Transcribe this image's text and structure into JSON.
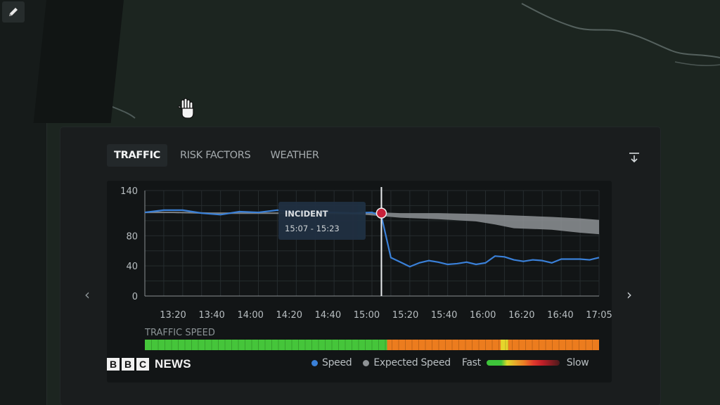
{
  "tabs": [
    {
      "label": "TRAFFIC",
      "active": true
    },
    {
      "label": "RISK FACTORS",
      "active": false
    },
    {
      "label": "WEATHER",
      "active": false
    }
  ],
  "icons": {
    "pen": "pencil-icon",
    "cursor": "hand-cursor-icon",
    "download": "download-icon",
    "prev": "chevron-left-icon",
    "next": "chevron-right-icon"
  },
  "chart_data": {
    "type": "line",
    "ylim": [
      0,
      140
    ],
    "yticks": [
      0,
      40,
      80,
      140
    ],
    "xticks": [
      "13:20",
      "13:40",
      "14:00",
      "14:20",
      "14:40",
      "15:00",
      "15:20",
      "15:40",
      "16:00",
      "16:20",
      "16:40",
      "17:05"
    ],
    "incident": {
      "label": "INCIDENT",
      "range": "15:07 - 15:23",
      "time": "15:10",
      "value": 110
    },
    "series": [
      {
        "name": "Speed",
        "color": "#3a80d8",
        "points": [
          [
            "13:05",
            111
          ],
          [
            "13:15",
            114
          ],
          [
            "13:25",
            114
          ],
          [
            "13:35",
            110
          ],
          [
            "13:45",
            108
          ],
          [
            "13:55",
            112
          ],
          [
            "14:05",
            111
          ],
          [
            "14:15",
            114
          ],
          [
            "14:25",
            111
          ],
          [
            "14:35",
            111
          ],
          [
            "14:45",
            111
          ],
          [
            "14:55",
            110
          ],
          [
            "15:05",
            111
          ],
          [
            "15:10",
            106
          ],
          [
            "15:15",
            51
          ],
          [
            "15:20",
            45
          ],
          [
            "15:25",
            39
          ],
          [
            "15:30",
            44
          ],
          [
            "15:35",
            47
          ],
          [
            "15:40",
            45
          ],
          [
            "15:45",
            42
          ],
          [
            "15:50",
            43
          ],
          [
            "15:55",
            45
          ],
          [
            "16:00",
            42
          ],
          [
            "16:05",
            44
          ],
          [
            "16:10",
            53
          ],
          [
            "16:15",
            52
          ],
          [
            "16:20",
            48
          ],
          [
            "16:25",
            46
          ],
          [
            "16:30",
            48
          ],
          [
            "16:35",
            47
          ],
          [
            "16:40",
            44
          ],
          [
            "16:45",
            49
          ],
          [
            "16:50",
            49
          ],
          [
            "16:55",
            49
          ],
          [
            "17:00",
            48
          ],
          [
            "17:05",
            51
          ]
        ]
      },
      {
        "name": "Expected Speed",
        "color": "#8e9295",
        "upper": [
          [
            "13:05",
            112
          ],
          [
            "13:20",
            112
          ],
          [
            "13:40",
            111
          ],
          [
            "14:00",
            111
          ],
          [
            "14:20",
            111
          ],
          [
            "14:40",
            111
          ],
          [
            "15:00",
            111
          ],
          [
            "15:10",
            111
          ],
          [
            "15:20",
            110
          ],
          [
            "15:40",
            110
          ],
          [
            "16:00",
            109
          ],
          [
            "16:10",
            108
          ],
          [
            "16:20",
            107
          ],
          [
            "16:40",
            105
          ],
          [
            "16:55",
            103
          ],
          [
            "17:05",
            101
          ]
        ],
        "lower": [
          [
            "13:05",
            110
          ],
          [
            "13:20",
            110
          ],
          [
            "13:40",
            109
          ],
          [
            "14:00",
            109
          ],
          [
            "14:20",
            109
          ],
          [
            "14:40",
            109
          ],
          [
            "15:00",
            108
          ],
          [
            "15:10",
            106
          ],
          [
            "15:20",
            104
          ],
          [
            "15:40",
            102
          ],
          [
            "16:00",
            99
          ],
          [
            "16:10",
            95
          ],
          [
            "16:20",
            90
          ],
          [
            "16:40",
            88
          ],
          [
            "16:55",
            84
          ],
          [
            "17:05",
            82
          ]
        ]
      }
    ],
    "speed_bar": {
      "label": "TRAFFIC SPEED",
      "segments": [
        {
          "from": "13:05",
          "to": "15:13",
          "color": "#45c53a"
        },
        {
          "from": "15:13",
          "to": "16:13",
          "color": "#ec7c1e"
        },
        {
          "from": "16:13",
          "to": "16:17",
          "color": "#e6d52c"
        },
        {
          "from": "16:17",
          "to": "17:07",
          "color": "#ec7c1e"
        }
      ]
    }
  },
  "legend": {
    "speed": "Speed",
    "expected": "Expected Speed",
    "fast": "Fast",
    "slow": "Slow",
    "speed_color": "#3a80d8",
    "expected_color": "#8e9295"
  },
  "branding": {
    "b1": "B",
    "b2": "B",
    "b3": "C",
    "news": "NEWS"
  }
}
